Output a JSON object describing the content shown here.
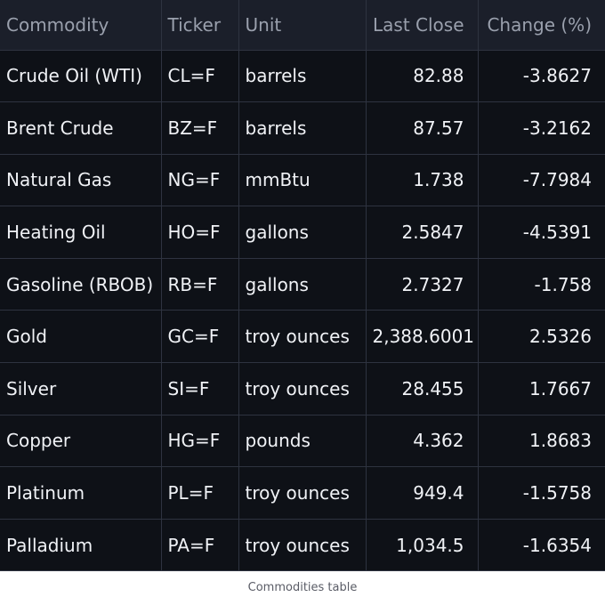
{
  "table": {
    "headers": [
      "Commodity",
      "Ticker",
      "Unit",
      "Last Close",
      "Change (%)"
    ],
    "rows": [
      [
        "Crude Oil (WTI)",
        "CL=F",
        "barrels",
        "82.88",
        "-3.8627"
      ],
      [
        "Brent Crude",
        "BZ=F",
        "barrels",
        "87.57",
        "-3.2162"
      ],
      [
        "Natural Gas",
        "NG=F",
        "mmBtu",
        "1.738",
        "-7.7984"
      ],
      [
        "Heating Oil",
        "HO=F",
        "gallons",
        "2.5847",
        "-4.5391"
      ],
      [
        "Gasoline (RBOB)",
        "RB=F",
        "gallons",
        "2.7327",
        "-1.758"
      ],
      [
        "Gold",
        "GC=F",
        "troy ounces",
        "2,388.6001",
        "2.5326"
      ],
      [
        "Silver",
        "SI=F",
        "troy ounces",
        "28.455",
        "1.7667"
      ],
      [
        "Copper",
        "HG=F",
        "pounds",
        "4.362",
        "1.8683"
      ],
      [
        "Platinum",
        "PL=F",
        "troy ounces",
        "949.4",
        "-1.5758"
      ],
      [
        "Palladium",
        "PA=F",
        "troy ounces",
        "1,034.5",
        "-1.6354"
      ]
    ],
    "caption": "Commodities table"
  },
  "colors": {
    "table_bg": "#0e1117",
    "header_bg": "#1b1f2a",
    "header_text": "#9aa0ad",
    "cell_text": "#f0f2f6",
    "grid_line": "#2e3340",
    "caption_text": "#5a5c66"
  }
}
